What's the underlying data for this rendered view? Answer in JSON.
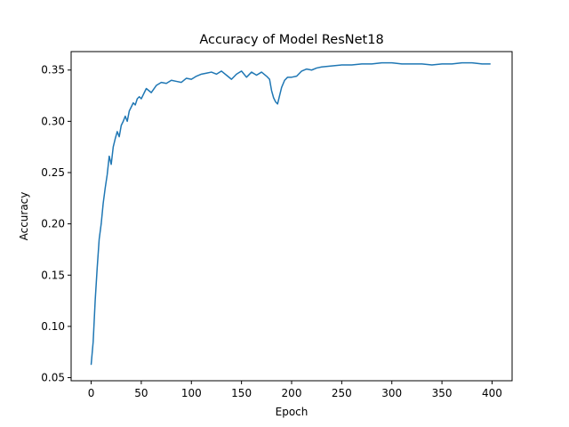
{
  "chart_data": {
    "type": "line",
    "title": "Accuracy of Model ResNet18",
    "xlabel": "Epoch",
    "ylabel": "Accuracy",
    "xlim": [
      -20,
      420
    ],
    "ylim": [
      0.047,
      0.368
    ],
    "xticks": [
      0,
      50,
      100,
      150,
      200,
      250,
      300,
      350,
      400
    ],
    "xtick_labels": [
      "0",
      "50",
      "100",
      "150",
      "200",
      "250",
      "300",
      "350",
      "400"
    ],
    "yticks": [
      0.05,
      0.1,
      0.15,
      0.2,
      0.25,
      0.3,
      0.35
    ],
    "ytick_labels": [
      "0.05",
      "0.10",
      "0.15",
      "0.20",
      "0.25",
      "0.30",
      "0.35"
    ],
    "grid": false,
    "legend": "none",
    "color": "#1f77b4",
    "series": [
      {
        "x": [
          0,
          2,
          4,
          6,
          8,
          10,
          12,
          14,
          16,
          18,
          20,
          22,
          24,
          26,
          28,
          30,
          32,
          34,
          36,
          38,
          40,
          42,
          44,
          46,
          48,
          50,
          55,
          60,
          65,
          70,
          75,
          80,
          85,
          90,
          95,
          100,
          105,
          110,
          115,
          120,
          125,
          130,
          135,
          140,
          145,
          150,
          155,
          160,
          165,
          170,
          175,
          178,
          180,
          182,
          184,
          186,
          188,
          190,
          193,
          196,
          200,
          205,
          210,
          215,
          220,
          225,
          230,
          240,
          250,
          260,
          270,
          280,
          290,
          300,
          310,
          320,
          330,
          340,
          350,
          360,
          370,
          380,
          390,
          395,
          398
        ],
        "values": [
          0.063,
          0.085,
          0.125,
          0.157,
          0.185,
          0.2,
          0.22,
          0.235,
          0.248,
          0.266,
          0.258,
          0.275,
          0.283,
          0.29,
          0.285,
          0.296,
          0.3,
          0.305,
          0.3,
          0.31,
          0.314,
          0.318,
          0.316,
          0.322,
          0.324,
          0.322,
          0.332,
          0.328,
          0.335,
          0.338,
          0.337,
          0.34,
          0.339,
          0.338,
          0.342,
          0.341,
          0.344,
          0.346,
          0.347,
          0.348,
          0.346,
          0.349,
          0.345,
          0.341,
          0.346,
          0.349,
          0.343,
          0.348,
          0.345,
          0.348,
          0.344,
          0.341,
          0.33,
          0.323,
          0.319,
          0.317,
          0.325,
          0.333,
          0.34,
          0.343,
          0.343,
          0.344,
          0.349,
          0.351,
          0.35,
          0.352,
          0.353,
          0.354,
          0.355,
          0.355,
          0.356,
          0.356,
          0.357,
          0.357,
          0.356,
          0.356,
          0.356,
          0.355,
          0.356,
          0.356,
          0.357,
          0.357,
          0.356,
          0.356,
          0.356
        ]
      }
    ]
  }
}
